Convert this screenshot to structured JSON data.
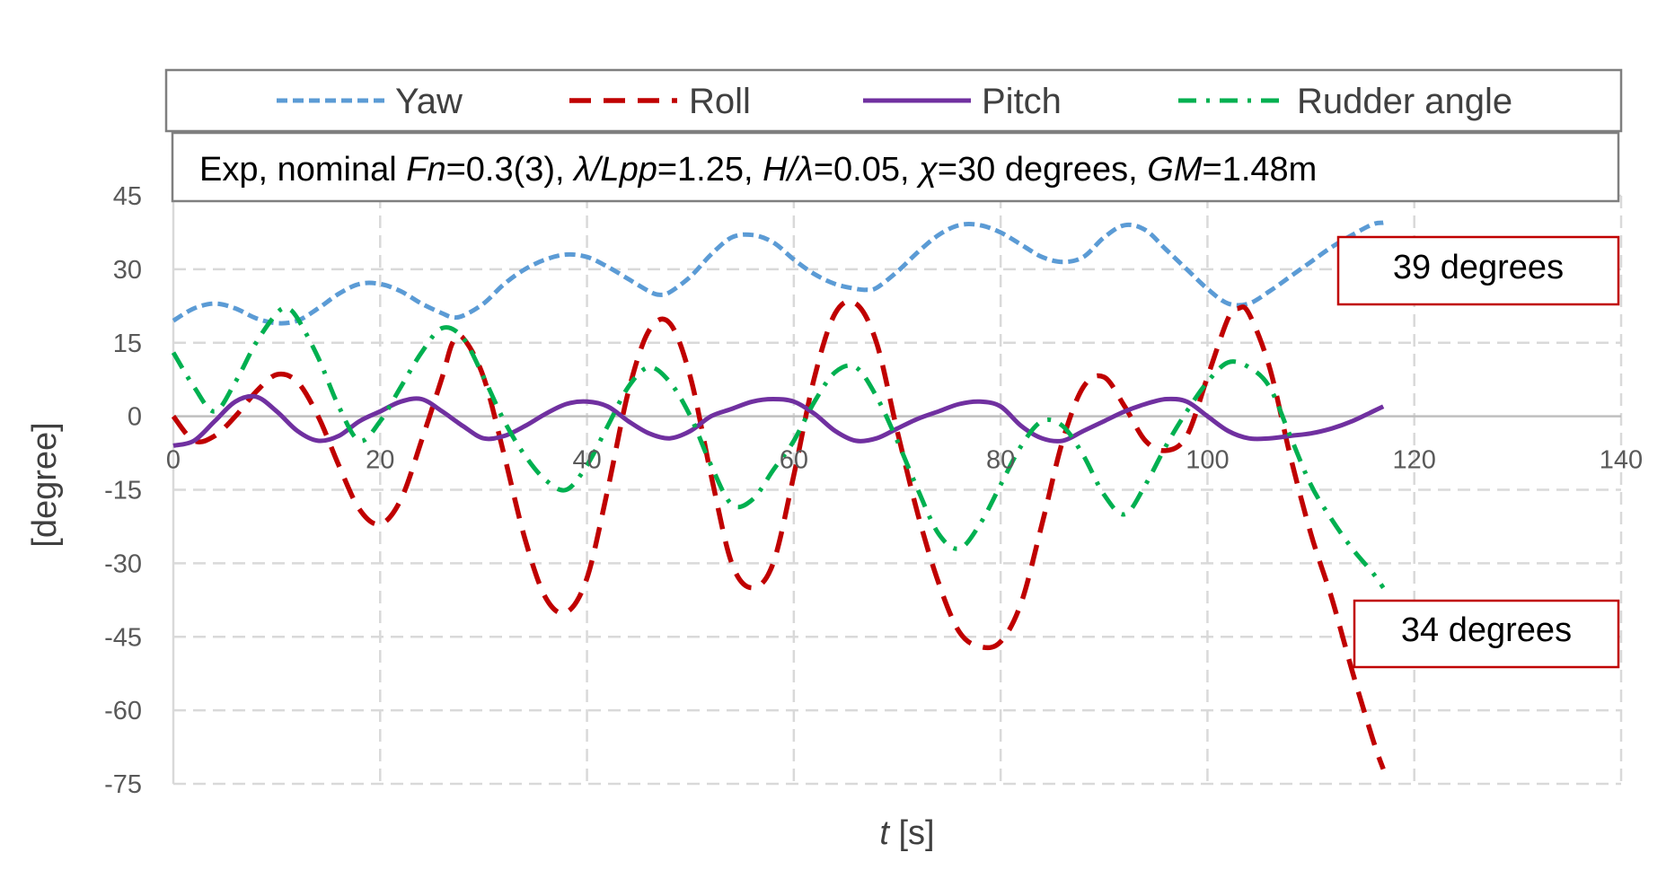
{
  "chart_data": {
    "type": "line",
    "xlabel_var": "t",
    "xlabel_unit": " [s]",
    "ylabel": "[degree]",
    "xlim": [
      0,
      140
    ],
    "ylim": [
      -75,
      45
    ],
    "xticks": [
      0,
      20,
      40,
      60,
      80,
      100,
      120,
      140
    ],
    "yticks": [
      45,
      30,
      15,
      0,
      -15,
      -30,
      -45,
      -60,
      -75
    ],
    "xtick_labels": [
      "0",
      "20",
      "40",
      "60",
      "80",
      "100",
      "120",
      "140"
    ],
    "ytick_labels": [
      "45",
      "30",
      "15",
      "0",
      "-15",
      "-30",
      "-45",
      "-60",
      "-75"
    ],
    "grid": true,
    "legend_position": "top",
    "condition_label": {
      "p1": "Exp, nominal ",
      "fn": "Fn",
      "p2": "=0.3(3), ",
      "lam1": "λ/Lpp",
      "p3": "=1.25, ",
      "h": "H/λ",
      "p4": "=0.05, ",
      "chi": "χ",
      "p5": "=30 degrees, ",
      "gm": "GM",
      "p6": "=1.48m"
    },
    "annotations": [
      {
        "text": "39 degrees",
        "near_x": 117,
        "near_y": 39
      },
      {
        "text": "34 degrees",
        "near_x": 117,
        "near_y": -34
      }
    ],
    "series": [
      {
        "name": "Yaw",
        "color": "#5B9BD5",
        "style": "dashed",
        "x": [
          0,
          2,
          4,
          6,
          8,
          10,
          12,
          14,
          16,
          18,
          20,
          22,
          24,
          26,
          27,
          28,
          30,
          32,
          34,
          36,
          38,
          40,
          42,
          44,
          46,
          47,
          48,
          50,
          52,
          54,
          56,
          58,
          60,
          62,
          64,
          66,
          67,
          68,
          70,
          72,
          74,
          76,
          78,
          80,
          82,
          84,
          86,
          88,
          90,
          92,
          94,
          96,
          98,
          100,
          102,
          104,
          106,
          108,
          110,
          112,
          114,
          116,
          117
        ],
        "values": [
          19.5,
          22,
          23,
          22,
          20,
          19,
          19.5,
          22,
          25,
          27,
          27,
          25.5,
          23,
          21,
          20.2,
          20.5,
          23,
          27,
          30,
          32,
          33,
          32.5,
          30.5,
          28,
          25.5,
          24.8,
          25.3,
          28.5,
          33,
          36.5,
          37,
          35.5,
          32,
          29,
          27,
          26,
          25.8,
          26.2,
          29.5,
          33.5,
          37,
          39,
          39,
          37.5,
          35,
          32.5,
          31.5,
          32.5,
          36.5,
          39,
          38,
          34,
          30,
          26,
          23,
          23,
          25.5,
          28.5,
          31.5,
          34.5,
          37,
          39.2,
          39.5
        ]
      },
      {
        "name": "Roll",
        "color": "#C00000",
        "style": "dashed",
        "x": [
          0,
          2,
          4,
          6,
          8,
          10,
          12,
          14,
          16,
          18,
          20,
          22,
          24,
          26,
          27,
          28,
          30,
          32,
          34,
          36,
          38,
          40,
          42,
          44,
          46,
          48,
          50,
          52,
          54,
          56,
          58,
          60,
          62,
          64,
          66,
          68,
          70,
          72,
          74,
          76,
          78,
          80,
          82,
          84,
          86,
          88,
          90,
          92,
          94,
          96,
          98,
          100,
          102,
          103,
          104,
          106,
          108,
          110,
          112,
          114,
          116,
          117
        ],
        "values": [
          0,
          -5,
          -4,
          0,
          5,
          8.5,
          7,
          0,
          -10,
          -19,
          -22,
          -17,
          -5,
          8,
          15,
          16,
          8,
          -8,
          -25,
          -37,
          -40,
          -33,
          -15,
          5,
          17.5,
          19,
          8,
          -12,
          -30,
          -35,
          -30,
          -12,
          8,
          21,
          23,
          15,
          -3,
          -20,
          -34,
          -44,
          -47,
          -46,
          -38,
          -22,
          -5,
          6,
          8,
          2,
          -5,
          -7,
          -4,
          8,
          20,
          22,
          21,
          10,
          -8,
          -24,
          -37,
          -52,
          -66,
          -72
        ]
      },
      {
        "name": "Pitch",
        "color": "#7030A0",
        "style": "solid",
        "x": [
          0,
          2,
          4,
          6,
          8,
          10,
          12,
          14,
          16,
          18,
          20,
          22,
          24,
          26,
          28,
          30,
          32,
          34,
          36,
          38,
          40,
          42,
          44,
          46,
          48,
          50,
          52,
          54,
          56,
          58,
          60,
          62,
          64,
          66,
          68,
          70,
          72,
          74,
          76,
          78,
          80,
          82,
          84,
          86,
          88,
          90,
          92,
          94,
          96,
          98,
          100,
          102,
          104,
          106,
          108,
          110,
          112,
          114,
          116,
          117
        ],
        "values": [
          -6,
          -5,
          -1,
          3,
          4,
          1,
          -3,
          -5,
          -4,
          -1,
          1,
          3,
          3.5,
          1,
          -2,
          -4.5,
          -4,
          -2,
          0.5,
          2.5,
          3,
          2,
          -1,
          -3.5,
          -4.5,
          -3,
          0,
          1.5,
          3,
          3.5,
          3,
          0.5,
          -3,
          -5,
          -4.5,
          -2.5,
          -0.5,
          1,
          2.5,
          3,
          2,
          -2,
          -4.5,
          -5,
          -3,
          -1,
          1,
          2.5,
          3.5,
          3,
          0,
          -3,
          -4.5,
          -4.5,
          -4,
          -3.5,
          -2.5,
          -1,
          1,
          2
        ]
      },
      {
        "name": "Rudder angle",
        "color": "#00B050",
        "style": "dashdot",
        "x": [
          0,
          2,
          4,
          6,
          8,
          10,
          11,
          12,
          14,
          16,
          18,
          20,
          22,
          24,
          26,
          28,
          30,
          32,
          34,
          36,
          38,
          40,
          42,
          44,
          46,
          48,
          50,
          52,
          54,
          56,
          58,
          60,
          62,
          64,
          66,
          68,
          70,
          72,
          74,
          76,
          78,
          80,
          82,
          84,
          86,
          88,
          90,
          92,
          94,
          96,
          98,
          100,
          102,
          104,
          106,
          108,
          110,
          112,
          114,
          116,
          117
        ],
        "values": [
          13,
          6,
          1,
          7,
          15,
          21,
          22,
          20,
          12,
          2,
          -5,
          -1,
          6,
          13,
          18,
          16,
          8,
          -1,
          -8,
          -13,
          -15,
          -10,
          -2,
          6,
          10,
          7,
          0,
          -10,
          -18,
          -17,
          -11,
          -5,
          3,
          9,
          10,
          4,
          -5,
          -15,
          -24,
          -27,
          -22,
          -14,
          -6,
          -1,
          -2,
          -8,
          -16,
          -20,
          -14,
          -6,
          1,
          7,
          11,
          10,
          6,
          -4,
          -14,
          -21,
          -27,
          -32,
          -35
        ]
      }
    ]
  }
}
